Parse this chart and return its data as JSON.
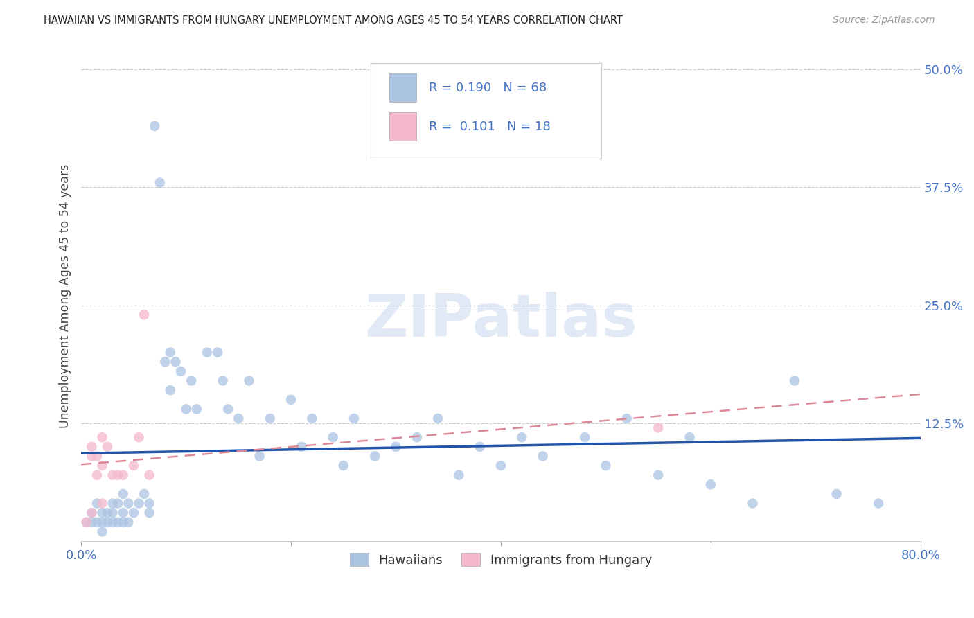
{
  "title": "HAWAIIAN VS IMMIGRANTS FROM HUNGARY UNEMPLOYMENT AMONG AGES 45 TO 54 YEARS CORRELATION CHART",
  "source": "Source: ZipAtlas.com",
  "ylabel": "Unemployment Among Ages 45 to 54 years",
  "xlim": [
    0.0,
    0.8
  ],
  "ylim": [
    0.0,
    0.52
  ],
  "blue_color": "#aac4e2",
  "blue_line_color": "#2255aa",
  "pink_color": "#f5b8cc",
  "pink_line_color": "#dd8899",
  "legend_R1": "0.190",
  "legend_N1": "68",
  "legend_R2": "0.101",
  "legend_N2": "18",
  "legend_label1": "Hawaiians",
  "legend_label2": "Immigrants from Hungary",
  "hawaiians_x": [
    0.005,
    0.01,
    0.01,
    0.015,
    0.015,
    0.02,
    0.02,
    0.02,
    0.025,
    0.025,
    0.03,
    0.03,
    0.03,
    0.035,
    0.035,
    0.04,
    0.04,
    0.04,
    0.045,
    0.045,
    0.05,
    0.055,
    0.06,
    0.065,
    0.065,
    0.07,
    0.075,
    0.08,
    0.085,
    0.085,
    0.09,
    0.095,
    0.1,
    0.105,
    0.11,
    0.12,
    0.13,
    0.135,
    0.14,
    0.15,
    0.16,
    0.17,
    0.18,
    0.2,
    0.21,
    0.22,
    0.24,
    0.25,
    0.26,
    0.28,
    0.3,
    0.32,
    0.34,
    0.36,
    0.38,
    0.4,
    0.42,
    0.44,
    0.48,
    0.5,
    0.52,
    0.55,
    0.58,
    0.6,
    0.64,
    0.68,
    0.72,
    0.76
  ],
  "hawaiians_y": [
    0.02,
    0.03,
    0.02,
    0.04,
    0.02,
    0.03,
    0.02,
    0.01,
    0.03,
    0.02,
    0.04,
    0.03,
    0.02,
    0.04,
    0.02,
    0.05,
    0.03,
    0.02,
    0.04,
    0.02,
    0.03,
    0.04,
    0.05,
    0.04,
    0.03,
    0.44,
    0.38,
    0.19,
    0.2,
    0.16,
    0.19,
    0.18,
    0.14,
    0.17,
    0.14,
    0.2,
    0.2,
    0.17,
    0.14,
    0.13,
    0.17,
    0.09,
    0.13,
    0.15,
    0.1,
    0.13,
    0.11,
    0.08,
    0.13,
    0.09,
    0.1,
    0.11,
    0.13,
    0.07,
    0.1,
    0.08,
    0.11,
    0.09,
    0.11,
    0.08,
    0.13,
    0.07,
    0.11,
    0.06,
    0.04,
    0.17,
    0.05,
    0.04
  ],
  "hungary_x": [
    0.005,
    0.01,
    0.01,
    0.01,
    0.015,
    0.015,
    0.02,
    0.02,
    0.02,
    0.025,
    0.03,
    0.035,
    0.04,
    0.05,
    0.055,
    0.06,
    0.065,
    0.55
  ],
  "hungary_y": [
    0.02,
    0.1,
    0.09,
    0.03,
    0.09,
    0.07,
    0.11,
    0.08,
    0.04,
    0.1,
    0.07,
    0.07,
    0.07,
    0.08,
    0.11,
    0.24,
    0.07,
    0.12
  ],
  "background_color": "#ffffff",
  "grid_color": "#cccccc",
  "watermark": "ZIPatlas"
}
